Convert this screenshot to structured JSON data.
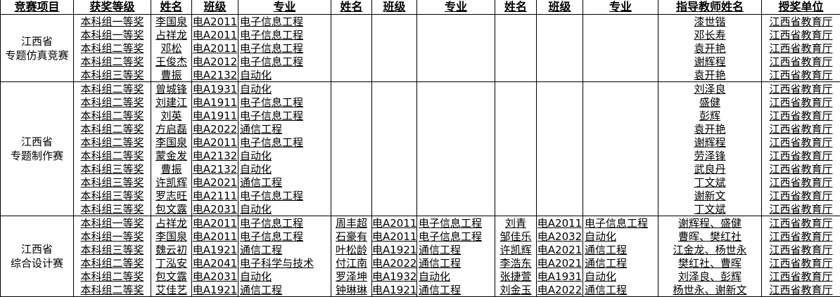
{
  "headers": [
    "竞赛项目",
    "获奖等级",
    "姓名",
    "班级",
    "专业",
    "姓名",
    "班级",
    "专业",
    "姓名",
    "班级",
    "专业",
    "指导教师姓名",
    "授奖单位"
  ],
  "groups": [
    {
      "competition": [
        "江西省",
        "专题仿真竞赛"
      ],
      "rows": [
        [
          "本科组一等奖",
          "李国泉",
          "电A2011",
          "电子信息工程",
          "",
          "",
          "",
          "",
          "",
          "",
          "漆世锴",
          "江西省教育厅"
        ],
        [
          "本科组一等奖",
          "占祥龙",
          "电A2011",
          "电子信息工程",
          "",
          "",
          "",
          "",
          "",
          "",
          "邓长寿",
          "江西省教育厅"
        ],
        [
          "本科组二等奖",
          "邓松",
          "电A2011",
          "电子信息工程",
          "",
          "",
          "",
          "",
          "",
          "",
          "袁开艳",
          "江西省教育厅"
        ],
        [
          "本科组二等奖",
          "王俊杰",
          "电A2012",
          "电子信息工程",
          "",
          "",
          "",
          "",
          "",
          "",
          "谢辉程",
          "江西省教育厅"
        ],
        [
          "本科组三等奖",
          "曹振",
          "电A2132",
          "自动化",
          "",
          "",
          "",
          "",
          "",
          "",
          "袁开艳",
          "江西省教育厅"
        ]
      ]
    },
    {
      "competition": [
        "江西省",
        "专题制作赛"
      ],
      "rows": [
        [
          "本科组二等奖",
          "曾城锋",
          "电A1931",
          "自动化",
          "",
          "",
          "",
          "",
          "",
          "",
          "刘泽良",
          "江西省教育厅"
        ],
        [
          "本科组二等奖",
          "刘建江",
          "电A1911",
          "电子信息工程",
          "",
          "",
          "",
          "",
          "",
          "",
          "盛健",
          "江西省教育厅"
        ],
        [
          "本科组二等奖",
          "刘英",
          "电A1911",
          "电子信息工程",
          "",
          "",
          "",
          "",
          "",
          "",
          "彭辉",
          "江西省教育厅"
        ],
        [
          "本科组二等奖",
          "方启磊",
          "电A2022",
          "通信工程",
          "",
          "",
          "",
          "",
          "",
          "",
          "袁开艳",
          "江西省教育厅"
        ],
        [
          "本科组二等奖",
          "李国泉",
          "电A2011",
          "电子信息工程",
          "",
          "",
          "",
          "",
          "",
          "",
          "谢辉程",
          "江西省教育厅"
        ],
        [
          "本科组二等奖",
          "蒙金发",
          "电A2132",
          "自动化",
          "",
          "",
          "",
          "",
          "",
          "",
          "劳泽锋",
          "江西省教育厅"
        ],
        [
          "本科组三等奖",
          "曹振",
          "电A2132",
          "自动化",
          "",
          "",
          "",
          "",
          "",
          "",
          "武良丹",
          "江西省教育厅"
        ],
        [
          "本科组三等奖",
          "许凯辉",
          "电A2021",
          "通信工程",
          "",
          "",
          "",
          "",
          "",
          "",
          "丁文斌",
          "江西省教育厅"
        ],
        [
          "本科组三等奖",
          "罗志旺",
          "电A2111",
          "电子信息工程",
          "",
          "",
          "",
          "",
          "",
          "",
          "谢新文",
          "江西省教育厅"
        ],
        [
          "本科组三等奖",
          "包文露",
          "电A2031",
          "自动化",
          "",
          "",
          "",
          "",
          "",
          "",
          "丁文斌",
          "江西省教育厅"
        ]
      ]
    },
    {
      "competition": [
        "江西省",
        "综合设计赛"
      ],
      "rows": [
        [
          "本科组一等奖",
          "占祥龙",
          "电A2011",
          "电子信息工程",
          "周丰超",
          "电A2011",
          "电子信息工程",
          "刘青",
          "电A2011",
          "电子信息工程",
          "谢辉程、盛健",
          "江西省教育厅"
        ],
        [
          "本科组一等奖",
          "李国泉",
          "电A2011",
          "电子信息工程",
          "石豪有",
          "电A2011",
          "电子信息工程",
          "邹佳乐",
          "电A2032",
          "自动化",
          "曹晖、樊红社",
          "江西省教育厅"
        ],
        [
          "本科组三等奖",
          "魏云初",
          "电A1921",
          "通信工程",
          "叶松龄",
          "电A1921",
          "通信工程",
          "许凯辉",
          "电A2021",
          "通信工程",
          "江金龙、杨世永",
          "江西省教育厅"
        ],
        [
          "本科组二等奖",
          "丁泓安",
          "电A2041",
          "电子科学与技术",
          "付江南",
          "电A2022",
          "通信工程",
          "李浩东",
          "电A2021",
          "通信工程",
          "樊红社、曹晖",
          "江西省教育厅"
        ],
        [
          "本科组二等奖",
          "包文露",
          "电A2031",
          "自动化",
          "罗泽坤",
          "电A1932",
          "自动化",
          "张捷萱",
          "电A1931",
          "自动化",
          "刘泽良、彭辉",
          "江西省教育厅"
        ],
        [
          "本科组二等奖",
          "艾佳艺",
          "电A1921",
          "通信工程",
          "钟琳琳",
          "电A1921",
          "通信工程",
          "刘金玉",
          "电A2022",
          "通信工程",
          "杨世永、谢新文",
          "江西省教育厅"
        ]
      ]
    }
  ]
}
